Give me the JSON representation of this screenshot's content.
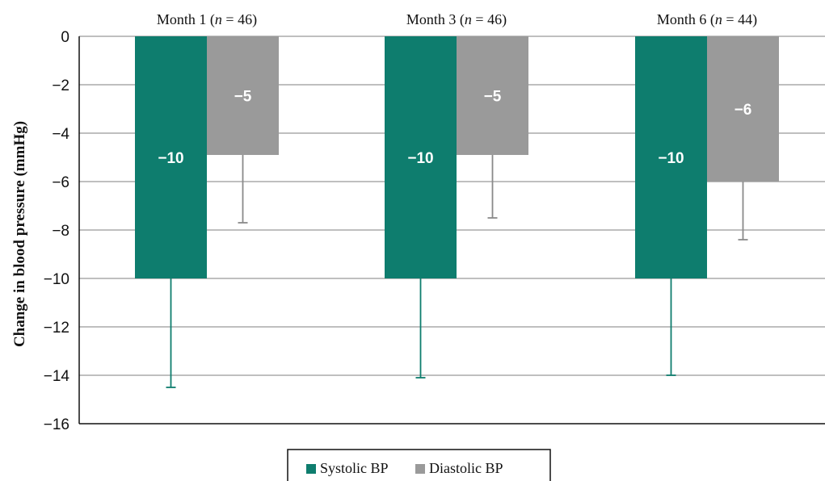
{
  "chart_data": {
    "type": "bar",
    "title": "",
    "xlabel": "",
    "ylabel": "Change in blood pressure (mmHg)",
    "ylim": [
      -16,
      0
    ],
    "yticks": [
      "0",
      "−2",
      "−4",
      "−6",
      "−8",
      "−10",
      "−12",
      "−14",
      "−16"
    ],
    "ytick_values": [
      0,
      -2,
      -4,
      -6,
      -8,
      -10,
      -12,
      -14,
      -16
    ],
    "grid": true,
    "legend_position": "bottom-center",
    "categories": [
      {
        "prefix": "Month 1 (",
        "n": "n",
        "suffix": " = 46)"
      },
      {
        "prefix": "Month 3 (",
        "n": "n",
        "suffix": " = 46)"
      },
      {
        "prefix": "Month 6 (",
        "n": "n",
        "suffix": " = 44)"
      }
    ],
    "series": [
      {
        "name": "Systolic BP",
        "color": "#0e7d6e",
        "errorbar_color": "#0e7d6e",
        "values": [
          -10,
          -10,
          -10
        ],
        "labels": [
          "−10",
          "−10",
          "−10"
        ],
        "error_low": [
          -14.5,
          -14.1,
          -14.0
        ]
      },
      {
        "name": "Diastolic BP",
        "color": "#9a9a9a",
        "errorbar_color": "#8a8a8a",
        "values": [
          -4.9,
          -4.9,
          -6.0
        ],
        "labels": [
          "−5",
          "−5",
          "−6"
        ],
        "error_low": [
          -7.7,
          -7.5,
          -8.4
        ]
      }
    ]
  }
}
